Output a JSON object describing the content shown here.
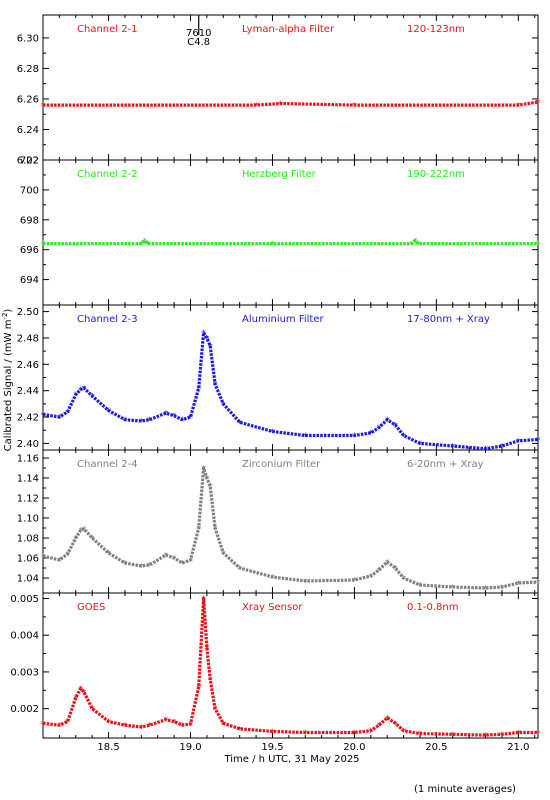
{
  "chart_data": {
    "type": "scatter",
    "marker": "asterisk",
    "grid": false,
    "xlabel": "Time / h UTC, 31 May 2025",
    "ylabel_main": "Calibrated Signal / (mW m",
    "ylabel_sup": "-2",
    "ylabel_close": ")",
    "footnote": "(1 minute averages)",
    "xlim": [
      18.1,
      21.12
    ],
    "xticks": [
      18.5,
      19.0,
      19.5,
      20.0,
      20.5,
      21.0
    ],
    "xtick_labels": [
      "18.5",
      "19.0",
      "19.5",
      "20.0",
      "20.5",
      "21.0"
    ],
    "flare_marker": {
      "x": 19.05,
      "label_top": "7610",
      "label_bottom": "C4.8"
    },
    "panels": [
      {
        "channel": "Channel 2-1",
        "filter": "Lyman-alpha Filter",
        "band": "120-123nm",
        "color": "#e8101a",
        "ylim": [
          6.22,
          6.315
        ],
        "yticks": [
          6.22,
          6.24,
          6.26,
          6.28,
          6.3
        ],
        "ytick_labels": [
          "6.22",
          "6.24",
          "6.26",
          "6.28",
          "6.30"
        ],
        "x": [
          18.1,
          19.4,
          19.55,
          20.0,
          21.0,
          21.12
        ],
        "y": [
          6.256,
          6.256,
          6.257,
          6.256,
          6.256,
          6.258
        ]
      },
      {
        "channel": "Channel 2-2",
        "filter": "Herzberg Filter",
        "band": "190-222nm",
        "color": "#22e81a",
        "ylim": [
          692.3,
          702.0
        ],
        "yticks": [
          694,
          696,
          698,
          700,
          702
        ],
        "ytick_labels": [
          "694",
          "696",
          "698",
          "700",
          "702"
        ],
        "x": [
          18.1,
          18.7,
          18.72,
          18.74,
          19.5,
          20.35,
          20.37,
          20.39,
          21.12
        ],
        "y": [
          696.4,
          696.4,
          696.6,
          696.4,
          696.4,
          696.4,
          696.6,
          696.4,
          696.4
        ]
      },
      {
        "channel": "Channel 2-3",
        "filter": "Aluminium Filter",
        "band": "17-80nm + Xray",
        "color": "#1a1ae0",
        "ylim": [
          2.395,
          2.505
        ],
        "yticks": [
          2.4,
          2.42,
          2.44,
          2.46,
          2.48,
          2.5
        ],
        "ytick_labels": [
          "2.40",
          "2.42",
          "2.44",
          "2.46",
          "2.48",
          "2.50"
        ],
        "x": [
          18.1,
          18.2,
          18.25,
          18.3,
          18.33,
          18.35,
          18.4,
          18.5,
          18.6,
          18.7,
          18.75,
          18.85,
          18.9,
          18.95,
          19.0,
          19.05,
          19.08,
          19.1,
          19.12,
          19.15,
          19.2,
          19.3,
          19.5,
          19.7,
          20.0,
          20.1,
          20.15,
          20.2,
          20.25,
          20.3,
          20.4,
          20.6,
          20.8,
          20.9,
          21.0,
          21.12
        ],
        "y": [
          2.422,
          2.42,
          2.424,
          2.437,
          2.441,
          2.442,
          2.436,
          2.425,
          2.418,
          2.417,
          2.418,
          2.423,
          2.421,
          2.418,
          2.42,
          2.442,
          2.484,
          2.48,
          2.474,
          2.445,
          2.43,
          2.416,
          2.409,
          2.406,
          2.406,
          2.408,
          2.412,
          2.418,
          2.414,
          2.406,
          2.4,
          2.398,
          2.396,
          2.398,
          2.402,
          2.403
        ]
      },
      {
        "channel": "Channel 2-4",
        "filter": "Zirconium Filter",
        "band": "6-20nm + Xray",
        "color": "#808080",
        "ylim": [
          1.025,
          1.168
        ],
        "yticks": [
          1.04,
          1.06,
          1.08,
          1.1,
          1.12,
          1.14,
          1.16
        ],
        "ytick_labels": [
          "1.04",
          "1.06",
          "1.08",
          "1.10",
          "1.12",
          "1.14",
          "1.16"
        ],
        "x": [
          18.1,
          18.2,
          18.25,
          18.3,
          18.33,
          18.35,
          18.4,
          18.5,
          18.6,
          18.7,
          18.75,
          18.85,
          18.9,
          18.95,
          19.0,
          19.05,
          19.08,
          19.1,
          19.12,
          19.15,
          19.2,
          19.3,
          19.5,
          19.7,
          20.0,
          20.1,
          20.15,
          20.2,
          20.25,
          20.3,
          20.4,
          20.6,
          20.8,
          20.9,
          21.0,
          21.12
        ],
        "y": [
          1.062,
          1.058,
          1.064,
          1.08,
          1.088,
          1.089,
          1.08,
          1.065,
          1.055,
          1.052,
          1.053,
          1.063,
          1.06,
          1.055,
          1.058,
          1.09,
          1.15,
          1.14,
          1.132,
          1.09,
          1.065,
          1.05,
          1.041,
          1.037,
          1.038,
          1.042,
          1.048,
          1.056,
          1.05,
          1.04,
          1.033,
          1.031,
          1.03,
          1.031,
          1.035,
          1.036
        ]
      },
      {
        "channel": "GOES",
        "filter": "Xray Sensor",
        "band": "0.1-0.8nm",
        "color": "#e8101a",
        "ylim": [
          0.0012,
          0.00515
        ],
        "yticks": [
          0.002,
          0.003,
          0.004,
          0.005
        ],
        "ytick_labels": [
          "0.002",
          "0.003",
          "0.004",
          "0.005"
        ],
        "x": [
          18.1,
          18.2,
          18.25,
          18.3,
          18.33,
          18.35,
          18.4,
          18.5,
          18.6,
          18.7,
          18.75,
          18.85,
          18.9,
          18.95,
          19.0,
          19.05,
          19.08,
          19.1,
          19.12,
          19.15,
          19.2,
          19.3,
          19.5,
          19.7,
          20.0,
          20.1,
          20.15,
          20.2,
          20.25,
          20.3,
          20.4,
          20.6,
          20.8,
          20.9,
          21.0,
          21.12
        ],
        "y": [
          0.0016,
          0.00155,
          0.00165,
          0.0023,
          0.00255,
          0.00245,
          0.002,
          0.00165,
          0.00155,
          0.0015,
          0.00155,
          0.0017,
          0.00165,
          0.00155,
          0.00158,
          0.0026,
          0.005,
          0.00365,
          0.0028,
          0.002,
          0.0016,
          0.00145,
          0.00138,
          0.00135,
          0.00135,
          0.0014,
          0.00155,
          0.00175,
          0.0016,
          0.0014,
          0.00132,
          0.0013,
          0.00128,
          0.0013,
          0.00135,
          0.00135
        ]
      }
    ]
  }
}
